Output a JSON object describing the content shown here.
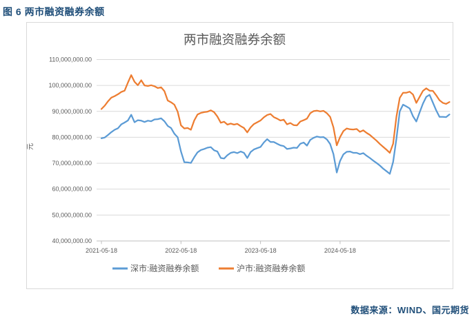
{
  "figure_header": {
    "label": "图 6 两市融资融券余额"
  },
  "source_note": {
    "text": "数据来源：WIND、国元期货"
  },
  "colors": {
    "header_text": "#1F4E79",
    "axis_text": "#595959",
    "gridline": "#D9D9D9",
    "axis_line": "#BFBFBF",
    "frame_border": "#D9D9D9",
    "series_shenzhen": "#5B9BD5",
    "series_shanghai": "#ED7D31"
  },
  "chart_data": {
    "type": "line",
    "title": "两市融资融券余额",
    "ylabel": "元",
    "xlabel": "",
    "y_min": 40000000,
    "y_max": 110000000,
    "y_tick_step": 10000000,
    "y_tick_labels": [
      "110,000,000.00",
      "100,000,000.00",
      "90,000,000.00",
      "80,000,000.00",
      "70,000,000.00",
      "60,000,000.00",
      "50,000,000.00",
      "40,000,000.00"
    ],
    "x_tick_labels": [
      "2021-05-18",
      "2022-05-18",
      "2023-05-18",
      "2024-05-18"
    ],
    "x_tick_positions_years": [
      0,
      1,
      2,
      3
    ],
    "x_span_years": 4.375,
    "sample_interval_years": 0.0416667,
    "grid": true,
    "legend_position": "bottom",
    "series": [
      {
        "name": "深市:融资融券余额",
        "color": "#5B9BD5",
        "values": [
          79600000,
          79900000,
          80900000,
          82000000,
          82900000,
          83500000,
          85000000,
          85700000,
          86500000,
          88700000,
          85800000,
          86600000,
          86400000,
          85900000,
          86400000,
          86200000,
          86900000,
          87000000,
          87300000,
          86200000,
          84400000,
          83600000,
          81400000,
          80000000,
          74500000,
          70400000,
          70300000,
          70100000,
          72300000,
          74200000,
          75100000,
          75500000,
          76000000,
          76200000,
          75000000,
          74500000,
          72000000,
          71800000,
          73100000,
          74000000,
          74300000,
          73900000,
          74500000,
          74000000,
          72000000,
          74300000,
          75300000,
          75800000,
          76300000,
          78000000,
          79300000,
          78200000,
          78200000,
          77500000,
          76900000,
          76600000,
          75500000,
          75700000,
          76000000,
          75900000,
          77500000,
          78000000,
          76800000,
          79000000,
          79800000,
          80300000,
          80000000,
          80100000,
          79200000,
          77400000,
          73500000,
          66400000,
          70900000,
          73400000,
          74400000,
          74500000,
          74000000,
          74000000,
          73500000,
          73900000,
          72900000,
          72000000,
          71000000,
          70100000,
          69100000,
          67900000,
          66900000,
          65900000,
          70500000,
          79500000,
          90000000,
          92600000,
          91900000,
          91100000,
          88100000,
          86100000,
          89600000,
          93000000,
          95600000,
          96400000,
          93400000,
          90400000,
          87900000,
          87900000,
          87800000,
          88800000
        ]
      },
      {
        "name": "沪市:融资融券余额",
        "color": "#ED7D31",
        "values": [
          90900000,
          92200000,
          93900000,
          95300000,
          95900000,
          96600000,
          97500000,
          98000000,
          101100000,
          104000000,
          101400000,
          100100000,
          102000000,
          100000000,
          99800000,
          100100000,
          99700000,
          99000000,
          99300000,
          97800000,
          94200000,
          93500000,
          92600000,
          89900000,
          84600000,
          83400000,
          83600000,
          82900000,
          86500000,
          88800000,
          89400000,
          89700000,
          89900000,
          90400000,
          89700000,
          88000000,
          85600000,
          86000000,
          84900000,
          85300000,
          84900000,
          85200000,
          84300000,
          83600000,
          81900000,
          83800000,
          85100000,
          85800000,
          86500000,
          87700000,
          88600000,
          89000000,
          87800000,
          87200000,
          86500000,
          86800000,
          85000000,
          85500000,
          84700000,
          84600000,
          86100000,
          86600000,
          87200000,
          89300000,
          90100000,
          90300000,
          90000000,
          90200000,
          89300000,
          87900000,
          83800000,
          76900000,
          80100000,
          82400000,
          83400000,
          83100000,
          83000000,
          83200000,
          82100000,
          82700000,
          81700000,
          80900000,
          79800000,
          78700000,
          77400000,
          76300000,
          75200000,
          74000000,
          77500000,
          88000000,
          95200000,
          97200000,
          97200000,
          97600000,
          96500000,
          93300000,
          95600000,
          97900000,
          98900000,
          98000000,
          97900000,
          96200000,
          94300000,
          93300000,
          92900000,
          93600000
        ]
      }
    ]
  }
}
